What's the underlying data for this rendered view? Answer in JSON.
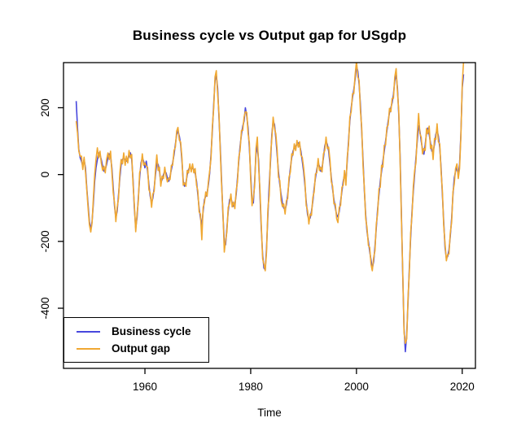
{
  "title": "Business cycle vs Output gap for USgdp",
  "axes": {
    "x_label": "Time",
    "y_label": ""
  },
  "colors": {
    "business_cycle": "#4747dd",
    "output_gap": "#f0a832",
    "axis": "#000000",
    "background": "#ffffff"
  },
  "legend": {
    "position": "bottomleft",
    "items": [
      {
        "label": "Business cycle",
        "color_key": "business_cycle"
      },
      {
        "label": "Output gap",
        "color_key": "output_gap"
      }
    ]
  },
  "chart_data": {
    "type": "line",
    "title": "Business cycle vs Output gap for USgdp",
    "xlabel": "Time",
    "ylabel": "",
    "grid": false,
    "legend_position": "bottomleft",
    "x_start": 1947.0,
    "x_step": 0.25,
    "x_end": 2020.25,
    "xticks": [
      1960,
      1980,
      2000,
      2020
    ],
    "yticks": [
      -400,
      -200,
      0,
      200
    ],
    "xlim": [
      1944.6,
      2022.5
    ],
    "ylim": [
      -580,
      335
    ],
    "series": [
      {
        "name": "Business cycle",
        "color": "#4747dd",
        "values": [
          220,
          140,
          75,
          50,
          40,
          25,
          45,
          20,
          -40,
          -90,
          -140,
          -165,
          -140,
          -85,
          -20,
          20,
          45,
          65,
          60,
          45,
          25,
          10,
          15,
          30,
          50,
          62,
          55,
          20,
          -40,
          -95,
          -130,
          -110,
          -60,
          -10,
          30,
          45,
          50,
          45,
          40,
          45,
          55,
          65,
          45,
          -15,
          -100,
          -160,
          -130,
          -70,
          -10,
          35,
          50,
          40,
          20,
          40,
          10,
          -30,
          -65,
          -85,
          -70,
          -40,
          0,
          35,
          30,
          10,
          -25,
          -15,
          0,
          10,
          5,
          -10,
          -20,
          -5,
          15,
          35,
          60,
          90,
          120,
          130,
          115,
          90,
          40,
          -20,
          -35,
          -25,
          0,
          15,
          22,
          15,
          20,
          15,
          5,
          -20,
          -60,
          -100,
          -130,
          -150,
          -110,
          -75,
          -65,
          -55,
          -30,
          5,
          60,
          130,
          210,
          280,
          297,
          260,
          170,
          80,
          -20,
          -120,
          -200,
          -210,
          -160,
          -110,
          -75,
          -70,
          -85,
          -95,
          -90,
          -60,
          -10,
          40,
          85,
          120,
          145,
          160,
          200,
          175,
          140,
          80,
          0,
          -80,
          -85,
          -20,
          60,
          85,
          40,
          -60,
          -160,
          -240,
          -280,
          -285,
          -220,
          -120,
          -30,
          40,
          120,
          160,
          150,
          110,
          60,
          10,
          -30,
          -60,
          -85,
          -100,
          -105,
          -90,
          -60,
          -20,
          20,
          50,
          70,
          80,
          85,
          90,
          95,
          90,
          70,
          40,
          10,
          -30,
          -80,
          -120,
          -135,
          -130,
          -110,
          -80,
          -40,
          -10,
          15,
          35,
          25,
          10,
          20,
          50,
          85,
          100,
          90,
          70,
          30,
          -10,
          -45,
          -75,
          -100,
          -120,
          -127,
          -110,
          -80,
          -50,
          -20,
          0,
          -20,
          40,
          100,
          160,
          200,
          230,
          255,
          285,
          325,
          310,
          270,
          210,
          130,
          40,
          -50,
          -120,
          -170,
          -200,
          -230,
          -255,
          -281,
          -260,
          -215,
          -160,
          -105,
          -60,
          -20,
          10,
          40,
          70,
          100,
          130,
          160,
          185,
          200,
          215,
          240,
          280,
          300,
          260,
          180,
          60,
          -120,
          -300,
          -460,
          -530,
          -480,
          -380,
          -280,
          -190,
          -110,
          -50,
          0,
          50,
          100,
          146,
          130,
          100,
          75,
          61,
          90,
          125,
          139,
          120,
          95,
          70,
          68,
          90,
          120,
          134,
          115,
          80,
          20,
          -60,
          -140,
          -220,
          -251,
          -245,
          -225,
          -185,
          -130,
          -60,
          -10,
          10,
          20,
          0,
          30,
          120,
          260,
          300
        ]
      },
      {
        "name": "Output gap",
        "color": "#f0a832",
        "values": [
          160,
          125,
          70,
          55,
          55,
          15,
          52,
          8,
          -45,
          -100,
          -150,
          -172,
          -145,
          -70,
          0,
          45,
          80,
          50,
          70,
          35,
          12,
          25,
          5,
          45,
          65,
          45,
          70,
          8,
          -55,
          -85,
          -141,
          -98,
          -72,
          5,
          45,
          32,
          65,
          28,
          55,
          35,
          72,
          50,
          60,
          -28,
          -88,
          -171,
          -118,
          -80,
          5,
          22,
          62,
          28,
          35,
          25,
          22,
          -45,
          -55,
          -98,
          -58,
          -50,
          15,
          59,
          12,
          22,
          -35,
          -5,
          -12,
          22,
          -5,
          -22,
          -10,
          -15,
          28,
          28,
          72,
          82,
          130,
          141,
          103,
          97,
          50,
          -32,
          -25,
          -35,
          12,
          5,
          32,
          8,
          32,
          5,
          18,
          -32,
          -48,
          -112,
          -118,
          -195,
          -98,
          -85,
          -52,
          -65,
          -20,
          12,
          48,
          142,
          198,
          292,
          311,
          242,
          182,
          68,
          -32,
          -108,
          -232,
          -198,
          -172,
          -98,
          -88,
          -58,
          -97,
          -82,
          -102,
          -48,
          -22,
          52,
          72,
          132,
          132,
          172,
          188,
          186,
          123,
          95,
          -15,
          -93,
          -68,
          -35,
          78,
          112,
          22,
          -45,
          -148,
          -252,
          -268,
          -288,
          -232,
          -102,
          -62,
          58,
          108,
          172,
          138,
          122,
          75,
          -8,
          -18,
          -78,
          -96,
          -88,
          -118,
          -78,
          -72,
          -8,
          8,
          62,
          58,
          92,
          72,
          102,
          82,
          98,
          58,
          52,
          22,
          -18,
          -92,
          -108,
          -148,
          -118,
          -122,
          -68,
          -52,
          2,
          5,
          48,
          12,
          22,
          8,
          62,
          72,
          112,
          78,
          82,
          42,
          -22,
          -35,
          -88,
          -88,
          -132,
          -144,
          -98,
          -92,
          -38,
          -32,
          12,
          -32,
          52,
          88,
          172,
          188,
          242,
          242,
          298,
          341,
          292,
          282,
          192,
          142,
          22,
          -42,
          -132,
          -158,
          -212,
          -218,
          -268,
          -288,
          -248,
          -228,
          -148,
          -118,
          -42,
          -38,
          28,
          22,
          88,
          88,
          142,
          148,
          198,
          188,
          228,
          228,
          292,
          317,
          248,
          192,
          48,
          -132,
          -288,
          -472,
          -505,
          -492,
          -368,
          -292,
          -175,
          -122,
          -35,
          12,
          35,
          118,
          183,
          122,
          112,
          62,
          78,
          72,
          138,
          122,
          145,
          78,
          88,
          45,
          108,
          105,
          152,
          98,
          92,
          8,
          -48,
          -152,
          -208,
          -258,
          -239,
          -238,
          -175,
          -142,
          -52,
          -28,
          18,
          32,
          -12,
          18,
          112,
          272,
          338
        ]
      }
    ]
  }
}
